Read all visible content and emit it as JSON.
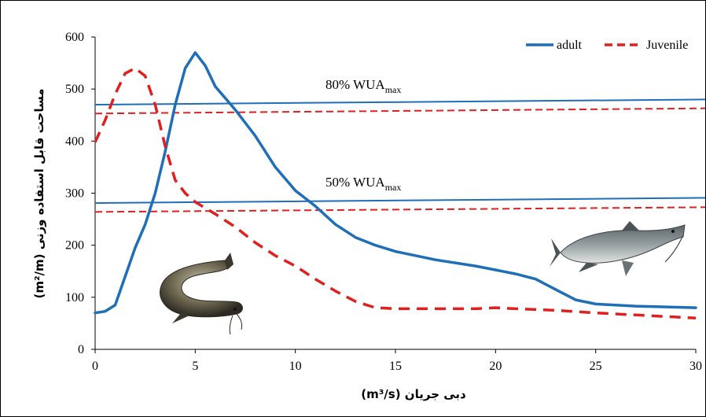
{
  "chart_data": {
    "type": "line",
    "xlabel": "دبی جریان (m³/s)",
    "ylabel": "مساحت قابل استفاده وزنی (m²/m)",
    "xlim": [
      0,
      30
    ],
    "ylim": [
      0,
      600
    ],
    "x_ticks": [
      "0",
      "5",
      "10",
      "15",
      "20",
      "25",
      "30"
    ],
    "y_ticks": [
      "0",
      "100",
      "200",
      "300",
      "400",
      "500",
      "600"
    ],
    "legend_position": "top-right",
    "grid": false,
    "series": [
      {
        "name": "adult",
        "color": "#1f6fb8",
        "style": "solid",
        "points": [
          [
            0,
            70
          ],
          [
            0.5,
            73
          ],
          [
            1,
            85
          ],
          [
            1.5,
            140
          ],
          [
            2,
            195
          ],
          [
            2.5,
            240
          ],
          [
            3,
            300
          ],
          [
            3.5,
            380
          ],
          [
            4,
            470
          ],
          [
            4.5,
            540
          ],
          [
            5,
            570
          ],
          [
            5.5,
            545
          ],
          [
            6,
            505
          ],
          [
            7,
            460
          ],
          [
            8,
            410
          ],
          [
            9,
            350
          ],
          [
            10,
            305
          ],
          [
            11,
            275
          ],
          [
            12,
            240
          ],
          [
            13,
            215
          ],
          [
            14,
            200
          ],
          [
            15,
            188
          ],
          [
            17,
            172
          ],
          [
            19,
            160
          ],
          [
            21,
            145
          ],
          [
            22,
            135
          ],
          [
            23,
            115
          ],
          [
            24,
            95
          ],
          [
            25,
            87
          ],
          [
            27,
            83
          ],
          [
            28,
            82
          ],
          [
            30,
            80
          ]
        ]
      },
      {
        "name": "Juvenile",
        "color": "#e02020",
        "style": "dashed",
        "points": [
          [
            0,
            398
          ],
          [
            0.5,
            440
          ],
          [
            1,
            490
          ],
          [
            1.5,
            530
          ],
          [
            2,
            540
          ],
          [
            2.5,
            525
          ],
          [
            3,
            470
          ],
          [
            3.5,
            390
          ],
          [
            4,
            325
          ],
          [
            4.5,
            300
          ],
          [
            5,
            283
          ],
          [
            6,
            260
          ],
          [
            7,
            235
          ],
          [
            8,
            205
          ],
          [
            9,
            180
          ],
          [
            10,
            160
          ],
          [
            11,
            135
          ],
          [
            12,
            112
          ],
          [
            13,
            92
          ],
          [
            14,
            80
          ],
          [
            15,
            78
          ],
          [
            17,
            78
          ],
          [
            19,
            78
          ],
          [
            20,
            80
          ],
          [
            21,
            78
          ],
          [
            23,
            75
          ],
          [
            25,
            70
          ],
          [
            27,
            66
          ],
          [
            30,
            60
          ]
        ]
      }
    ],
    "reference_lines": [
      {
        "label": "80% WUAmax",
        "series": "adult",
        "y_start": 470,
        "y_end": 480
      },
      {
        "label": "80% WUAmax",
        "series": "Juvenile",
        "y_start": 453,
        "y_end": 463
      },
      {
        "label": "50% WUAmax",
        "series": "adult",
        "y_start": 281,
        "y_end": 291
      },
      {
        "label": "50% WUAmax",
        "series": "Juvenile",
        "y_start": 264,
        "y_end": 273
      }
    ],
    "annotations": [
      {
        "text_main": "80% WUA",
        "text_sub": "max"
      },
      {
        "text_main": "50% WUA",
        "text_sub": "max"
      }
    ]
  }
}
